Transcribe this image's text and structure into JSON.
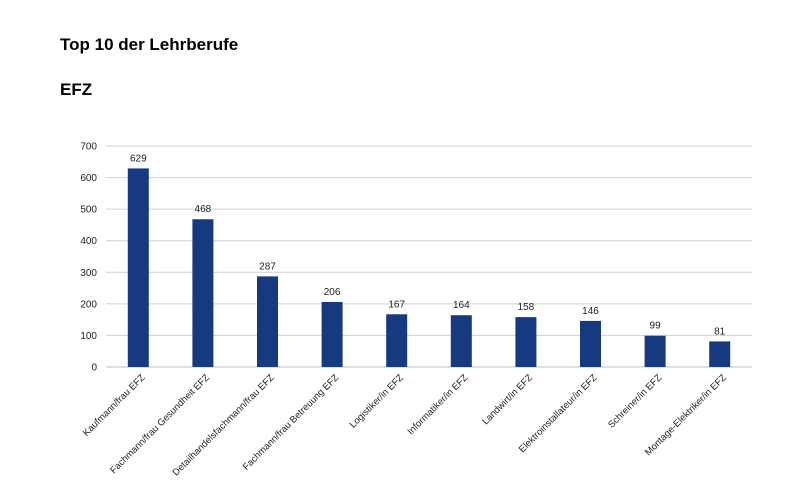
{
  "chart_data": {
    "type": "bar",
    "title": "Top 10 der Lehrberufe",
    "subtitle": "EFZ",
    "xlabel": "",
    "ylabel": "",
    "ylim": [
      0,
      700
    ],
    "yticks": [
      0,
      100,
      200,
      300,
      400,
      500,
      600,
      700
    ],
    "grid": true,
    "bar_color": "#17397f",
    "categories": [
      "Kaufmann/frau EFZ",
      "Fachmann/frau Gesundheit EFZ",
      "Detailhandelsfachmann/frau EFZ",
      "Fachmann/frau Betreuung EFZ",
      "Logistiker/in EFZ",
      "Informatiker/in EFZ",
      "Landwirt/in EFZ",
      "Elektroinstallateur/in EFZ",
      "Schreiner/in EFZ",
      "Montage-Elektriker/in EFZ"
    ],
    "values": [
      629,
      468,
      287,
      206,
      167,
      164,
      158,
      146,
      99,
      81
    ]
  }
}
